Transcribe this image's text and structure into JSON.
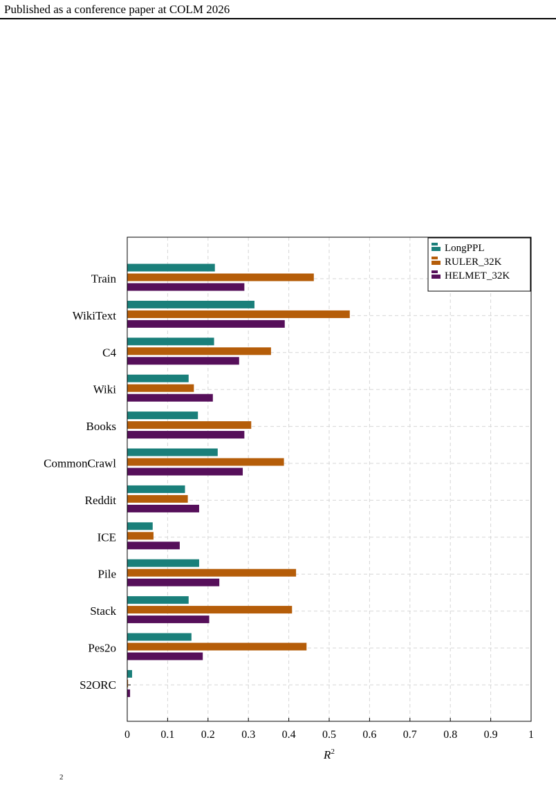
{
  "header": {
    "text": "Published as a conference paper at COLM 2026"
  },
  "chart_data": {
    "type": "bar",
    "orientation": "horizontal",
    "categories": [
      "Train",
      "WikiText",
      "C4",
      "Wiki",
      "Books",
      "CommonCrawl",
      "Reddit",
      "ICE",
      "Pile",
      "Stack",
      "Pes2o",
      "S2ORC"
    ],
    "series": [
      {
        "name": "LongPPL",
        "color": "#1a7f7a",
        "values": [
          0.217,
          0.315,
          0.215,
          0.152,
          0.175,
          0.224,
          0.143,
          0.063,
          0.178,
          0.152,
          0.159,
          0.012
        ]
      },
      {
        "name": "RULER_32K",
        "color": "#b55d09",
        "values": [
          0.462,
          0.551,
          0.356,
          0.165,
          0.307,
          0.388,
          0.15,
          0.065,
          0.418,
          0.408,
          0.444,
          0.002
        ]
      },
      {
        "name": "HELMET_32K",
        "color": "#560f5a",
        "values": [
          0.29,
          0.39,
          0.277,
          0.212,
          0.29,
          0.286,
          0.178,
          0.13,
          0.228,
          0.203,
          0.187,
          0.007
        ]
      }
    ],
    "xlabel": "R",
    "xlabel_superscript": "2",
    "xlim": [
      0,
      1
    ],
    "xticks": [
      "0",
      "0.1",
      "0.2",
      "0.3",
      "0.4",
      "0.5",
      "0.6",
      "0.7",
      "0.8",
      "0.9",
      "1"
    ],
    "grid": true,
    "legend_position": "top-right"
  },
  "caption_fragment": "2"
}
